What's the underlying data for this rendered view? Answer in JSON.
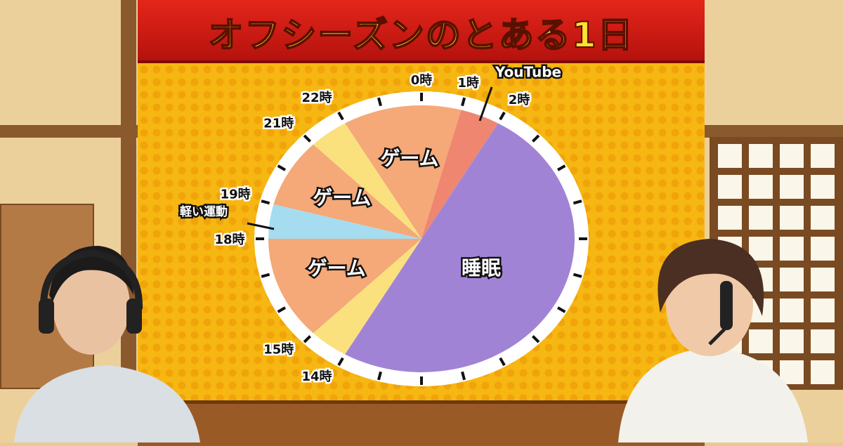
{
  "title": "オフシーズンのとある1日",
  "chart_data": {
    "type": "pie",
    "subtype": "24-hour clock",
    "start_hour": 0,
    "direction": "clockwise",
    "slices": [
      {
        "label": "ゲーム",
        "start": 22,
        "end": 25,
        "color": "#f5a878"
      },
      {
        "label": "YouTube",
        "start": 1,
        "end": 2,
        "color": "#ef8670",
        "callout": true
      },
      {
        "label": "睡眠",
        "start": 2,
        "end": 14,
        "color": "#a183d6"
      },
      {
        "label": "",
        "start": 14,
        "end": 15,
        "color": "#fbe07e"
      },
      {
        "label": "ゲーム",
        "start": 15,
        "end": 18,
        "color": "#f5a878"
      },
      {
        "label": "軽い運動",
        "start": 18,
        "end": 19,
        "color": "#a6dcef",
        "callout": true
      },
      {
        "label": "ゲーム",
        "start": 19,
        "end": 21,
        "color": "#f5a878"
      },
      {
        "label": "",
        "start": 21,
        "end": 22,
        "color": "#fbe07e"
      }
    ],
    "hour_labels": [
      {
        "hour": 0,
        "text": "0時"
      },
      {
        "hour": 1,
        "text": "1時"
      },
      {
        "hour": 2,
        "text": "2時"
      },
      {
        "hour": 14,
        "text": "14時"
      },
      {
        "hour": 15,
        "text": "15時"
      },
      {
        "hour": 18,
        "text": "18時"
      },
      {
        "hour": 19,
        "text": "19時"
      },
      {
        "hour": 21,
        "text": "21時"
      },
      {
        "hour": 22,
        "text": "22時"
      }
    ],
    "ticks": 24
  }
}
